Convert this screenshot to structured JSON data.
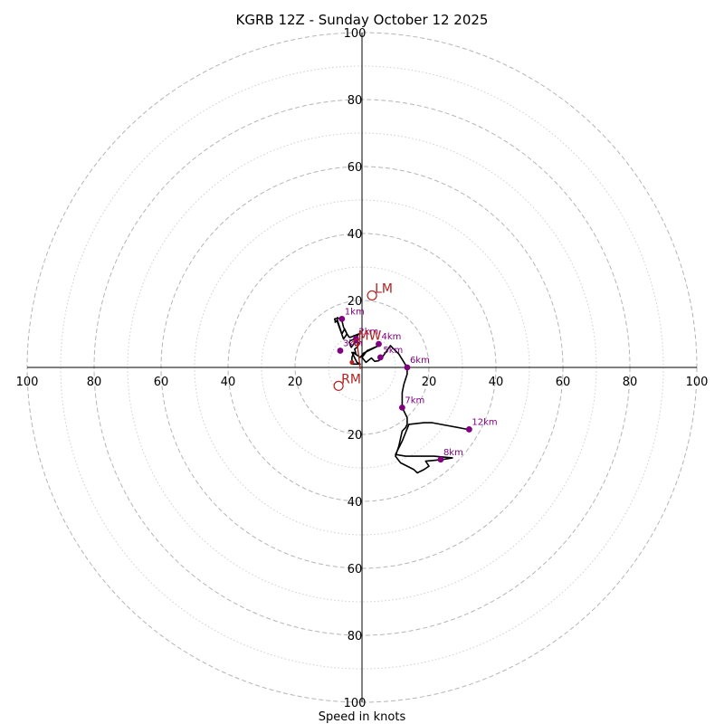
{
  "chart_data": {
    "type": "hodograph",
    "title": "KGRB 12Z - Sunday October 12 2025",
    "xlabel": "Speed in knots",
    "rings": [
      20,
      40,
      60,
      80,
      100
    ],
    "minor_rings": [
      10,
      30,
      50,
      70,
      90
    ],
    "tick_labels": {
      "top": [
        "20",
        "40",
        "60",
        "80",
        "100"
      ],
      "bottom": [
        "20",
        "40",
        "60",
        "80",
        "100"
      ],
      "left": [
        "20",
        "40",
        "60",
        "80",
        "100"
      ],
      "right": [
        "20",
        "40",
        "60",
        "80",
        "100"
      ]
    },
    "range": [
      -100,
      100
    ],
    "trace": [
      [
        -7.5,
        15
      ],
      [
        -6,
        14
      ],
      [
        -5.5,
        12
      ],
      [
        -5,
        11
      ],
      [
        -4.5,
        10
      ],
      [
        -5.5,
        8.5
      ],
      [
        -7.5,
        14
      ],
      [
        -8,
        13.5
      ],
      [
        -8,
        14
      ],
      [
        -8.2,
        14.4
      ],
      [
        -8,
        14.6
      ],
      [
        -7.5,
        14.6
      ],
      [
        -7,
        13
      ],
      [
        -6.5,
        11.5
      ],
      [
        -6,
        10
      ],
      [
        -5.2,
        11.5
      ],
      [
        -4.5,
        10
      ],
      [
        -3.8,
        9
      ],
      [
        -3.5,
        9
      ],
      [
        -1,
        10
      ],
      [
        -2,
        8.5
      ],
      [
        -3,
        8.2
      ],
      [
        -3.5,
        8
      ],
      [
        -3.8,
        7.5
      ],
      [
        -3.2,
        6
      ],
      [
        -2.2,
        7.5
      ],
      [
        -1,
        7.5
      ],
      [
        -0.8,
        7
      ],
      [
        -1.5,
        6
      ],
      [
        -2.2,
        5.5
      ],
      [
        -1.8,
        4
      ],
      [
        -2.5,
        4.5
      ],
      [
        -3,
        3
      ],
      [
        -3,
        2
      ],
      [
        -3,
        1
      ],
      [
        -0.5,
        1
      ],
      [
        -1.5,
        1.5
      ],
      [
        -3,
        4.5
      ],
      [
        -2,
        4
      ],
      [
        -0.5,
        3
      ],
      [
        0.5,
        4.3
      ],
      [
        5,
        6.5
      ],
      [
        1.5,
        5
      ],
      [
        0,
        3
      ],
      [
        1.2,
        1.5
      ],
      [
        2.8,
        2.8
      ],
      [
        3.8,
        1.8
      ],
      [
        5,
        2
      ],
      [
        6,
        3
      ],
      [
        8.5,
        6.5
      ],
      [
        11,
        4
      ],
      [
        13.5,
        0
      ],
      [
        13.5,
        -2
      ],
      [
        12.5,
        -5
      ],
      [
        12,
        -7.5
      ],
      [
        12,
        -9
      ],
      [
        12,
        -12
      ],
      [
        13.5,
        -15
      ],
      [
        13.5,
        -17
      ],
      [
        13,
        -18
      ],
      [
        12,
        -19
      ],
      [
        11,
        -23.5
      ],
      [
        10,
        -26.5
      ],
      [
        11.5,
        -28.5
      ],
      [
        15.5,
        -30.5
      ],
      [
        16.5,
        -31.5
      ],
      [
        18.5,
        -30.5
      ],
      [
        20,
        -29.5
      ],
      [
        19,
        -28
      ],
      [
        24,
        -27.5
      ],
      [
        27,
        -27
      ],
      [
        21.5,
        -26.5
      ],
      [
        17.5,
        -26.5
      ],
      [
        13,
        -26.5
      ],
      [
        10,
        -26
      ],
      [
        12,
        -22
      ],
      [
        14,
        -17
      ],
      [
        18.5,
        -16.5
      ],
      [
        21,
        -16.5
      ],
      [
        31.5,
        -18.5
      ]
    ],
    "height_markers": [
      {
        "label": "1km",
        "u": -6,
        "v": 14.5
      },
      {
        "label": "2km",
        "u": -1.8,
        "v": 8.5
      },
      {
        "label": "3km",
        "u": -6.5,
        "v": 5
      },
      {
        "label": "4km",
        "u": 5,
        "v": 7
      },
      {
        "label": "5km",
        "u": 5.5,
        "v": 3
      },
      {
        "label": "6km",
        "u": 13.5,
        "v": 0
      },
      {
        "label": "7km",
        "u": 12,
        "v": -12
      },
      {
        "label": "8km",
        "u": 23.5,
        "v": -27.5
      },
      {
        "label": "12km",
        "u": 32,
        "v": -18.5
      }
    ],
    "sfc_point": {
      "u": -3,
      "v": 1.5
    },
    "storm_motion": {
      "lm": {
        "label": "LM",
        "u": 3,
        "v": 21.5
      },
      "rm": {
        "label": "RM",
        "u": -7,
        "v": -5.5
      },
      "mw": {
        "label": "MW",
        "u": -1.5,
        "v": 7.5
      },
      "shear_vector_end": {
        "u": -0.5,
        "v": -0.5
      }
    },
    "colors": {
      "trace": "#000000",
      "markers": "#800080",
      "storm_motion": "#b22222",
      "rings": "#b5b5b5",
      "axes": "#000000"
    }
  }
}
